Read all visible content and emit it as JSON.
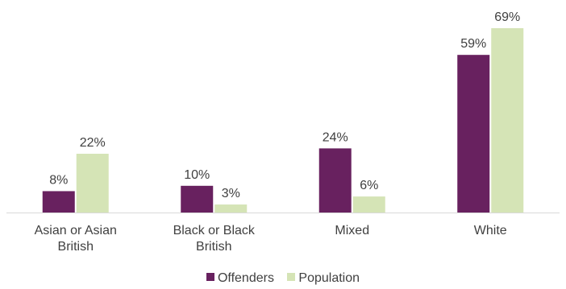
{
  "chart_data": {
    "type": "bar",
    "categories": [
      [
        "Asian or Asian",
        "British"
      ],
      [
        "Black or Black",
        "British"
      ],
      [
        "Mixed"
      ],
      [
        "White"
      ]
    ],
    "series": [
      {
        "name": "Offenders",
        "values": [
          8,
          10,
          24,
          59
        ],
        "labels": [
          "8%",
          "10%",
          "24%",
          "59%"
        ],
        "color": "#68215f"
      },
      {
        "name": "Population",
        "values": [
          22,
          3,
          6,
          69
        ],
        "labels": [
          "22%",
          "3%",
          "6%",
          "69%"
        ],
        "color": "#d5e4b6"
      }
    ],
    "unit": "%",
    "ylim": [
      0,
      69
    ],
    "grid": false,
    "axis_line_color": "#d9d9d9",
    "legend_position": "bottom"
  }
}
